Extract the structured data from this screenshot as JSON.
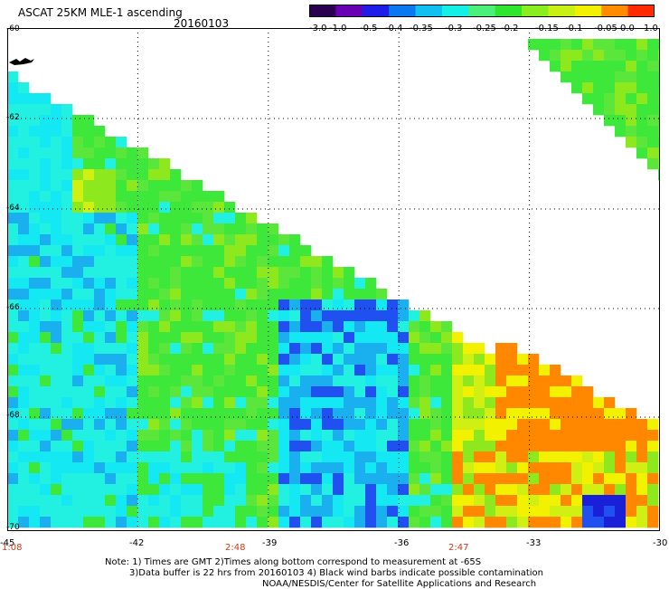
{
  "header": {
    "title": "ASCAT 25KM MLE-1 ascending",
    "date": "20160103"
  },
  "colorbar": {
    "labels": [
      "-3.0",
      "-1.0",
      "-0.5",
      "-0.4",
      "-0.35",
      "-0.3",
      "-0.25",
      "-0.2",
      "-0.15",
      "-0.1",
      "-0.05",
      "0.0",
      "1.0"
    ],
    "colors": [
      "#2c0050",
      "#6a00b4",
      "#1e1ee6",
      "#0a78f0",
      "#0fc0f0",
      "#14f0e6",
      "#4af07a",
      "#2ee62e",
      "#8aee1e",
      "#c8f014",
      "#f0f000",
      "#ff8c00",
      "#ff2a00"
    ]
  },
  "map": {
    "lat_labels": [
      "-60",
      "-62",
      "-64",
      "-66",
      "-68",
      "-70"
    ],
    "lon_labels": [
      "-45",
      "-42",
      "-39",
      "-36",
      "-33",
      "-30"
    ],
    "lat_range": [
      -70,
      -60
    ],
    "lon_range": [
      -45,
      -30
    ],
    "grid": "dotted"
  },
  "times": [
    "1:08",
    "2:48",
    "2:47"
  ],
  "notes": [
    "Note: 1) Times are GMT 2)Times along bottom correspond to measurement at -65S",
    "3)Data buffer is 22 hrs from 20160103 4) Black wind barbs indicate possible contamination",
    "NOAA/NESDIS/Center for Satellite Applications and Research"
  ]
}
